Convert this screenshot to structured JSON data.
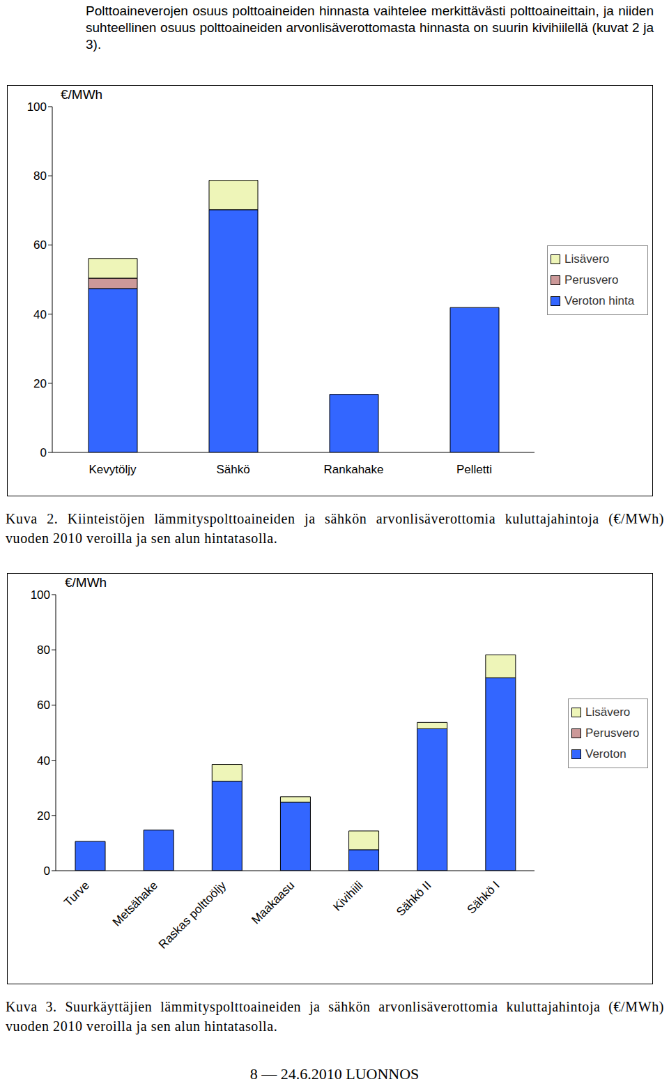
{
  "paragraph": "Polttoaineverojen osuus polttoaineiden hinnasta vaihtelee merkittävästi polttoaineittain, ja niiden suhteellinen osuus polttoaineiden arvonlisäverottomasta hinnasta on suurin kivihiilellä (kuvat 2 ja 3).",
  "chart_data": [
    {
      "type": "bar",
      "stacked": true,
      "y_label": "€/MWh",
      "caption": "Kuva 2. Kiinteistöjen lämmityspolttoaineiden ja sähkön arvonlisäverottomia kuluttajahintoja (€/MWh) vuoden 2010 veroilla ja sen alun hintatasolla.",
      "categories": [
        "Kevytöljy",
        "Sähkö",
        "Rankahake",
        "Pelletti"
      ],
      "series": [
        {
          "name": "Veroton hinta",
          "color": "#3366ff",
          "values": [
            47.4,
            70.2,
            16.8,
            41.9
          ]
        },
        {
          "name": "Perusvero",
          "color": "#cc9999",
          "values": [
            3,
            0,
            0,
            0
          ]
        },
        {
          "name": "Lisävero",
          "color": "#eef5b8",
          "values": [
            5.7,
            8.5,
            0,
            0
          ]
        }
      ],
      "ylim": [
        0,
        100
      ],
      "yticks": [
        0,
        20,
        40,
        60,
        80,
        100
      ],
      "grid": false,
      "legend": "right"
    },
    {
      "type": "bar",
      "stacked": true,
      "y_label": "€/MWh",
      "caption": "Kuva 3. Suurkäyttäjien lämmityspolttoaineiden ja sähkön arvonlisäverottomia kuluttajahintoja (€/MWh) vuoden 2010 veroilla ja sen alun hintatasolla.",
      "categories": [
        "Turve",
        "Metsähake",
        "Raskas polttoöljy",
        "Maakaasu",
        "Kivihiili",
        "Sähkö II",
        "Sähkö I"
      ],
      "series": [
        {
          "name": "Veroton",
          "color": "#3366ff",
          "values": [
            10.6,
            14.7,
            32.4,
            24.8,
            7.6,
            51.4,
            69.9
          ]
        },
        {
          "name": "Perusvero",
          "color": "#cc9999",
          "values": [
            0,
            0,
            0,
            0,
            0,
            0,
            0
          ]
        },
        {
          "name": "Lisävero",
          "color": "#eef5b8",
          "values": [
            0,
            0,
            6.1,
            2.0,
            6.8,
            2.3,
            8.3
          ]
        }
      ],
      "ylim": [
        0,
        100
      ],
      "yticks": [
        0,
        20,
        40,
        60,
        80,
        100
      ],
      "grid": false,
      "legend": "right"
    }
  ],
  "footer": "8 — 24.6.2010 LUONNOS"
}
